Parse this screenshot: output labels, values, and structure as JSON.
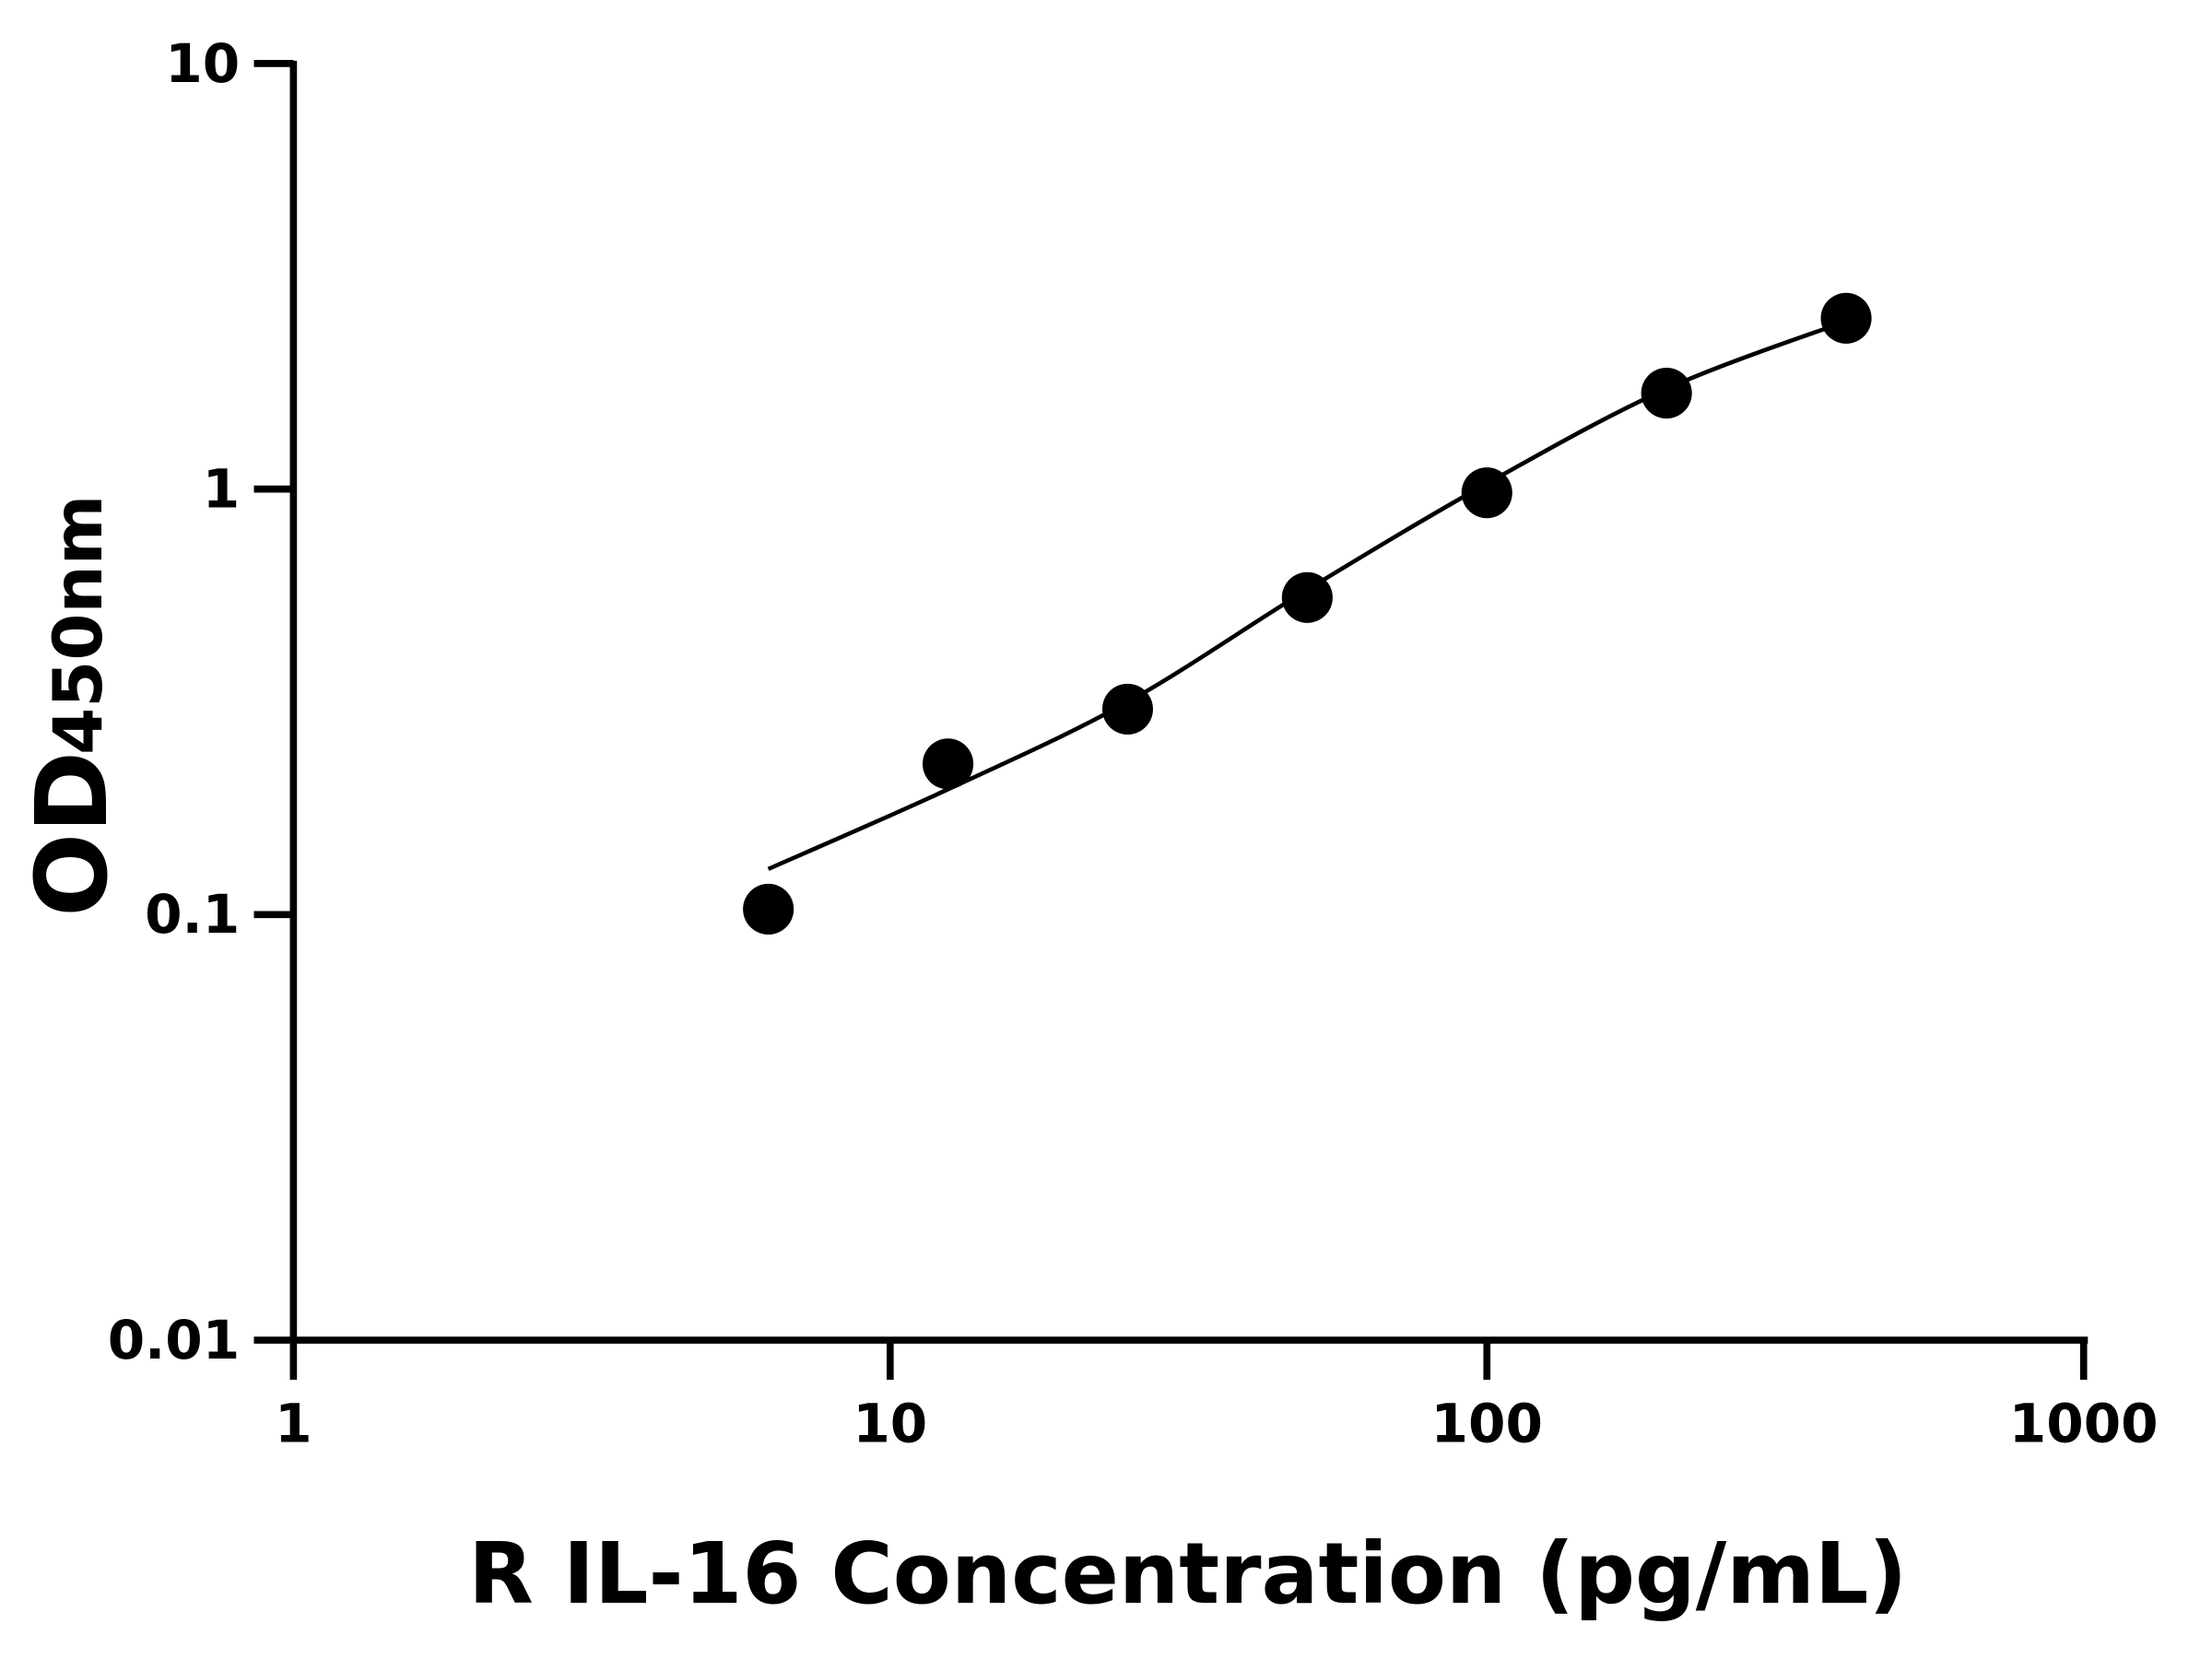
{
  "chart_data": {
    "type": "scatter",
    "title": "",
    "xlabel": "R IL-16 Concentration (pg/mL)",
    "ylabel_main": "OD",
    "ylabel_sub": "450nm",
    "x_scale": "log",
    "y_scale": "log",
    "xlim": [
      1,
      1000
    ],
    "ylim": [
      0.01,
      10
    ],
    "x_ticks": [
      "1",
      "10",
      "100",
      "1000"
    ],
    "y_ticks": [
      "0.01",
      "0.1",
      "1",
      "10"
    ],
    "grid": false,
    "legend": "none",
    "points": {
      "x": [
        6.25,
        12.5,
        25,
        50,
        100,
        200,
        400
      ],
      "y": [
        0.103,
        0.226,
        0.304,
        0.556,
        0.98,
        1.68,
        2.52
      ]
    },
    "fit_curve": {
      "x": [
        6.25,
        12.5,
        25,
        50,
        100,
        200,
        400
      ],
      "y": [
        0.128,
        0.197,
        0.316,
        0.58,
        1.03,
        1.72,
        2.48
      ]
    },
    "colors": {
      "points": "#000000",
      "curve": "#000000",
      "axes": "#000000"
    }
  }
}
